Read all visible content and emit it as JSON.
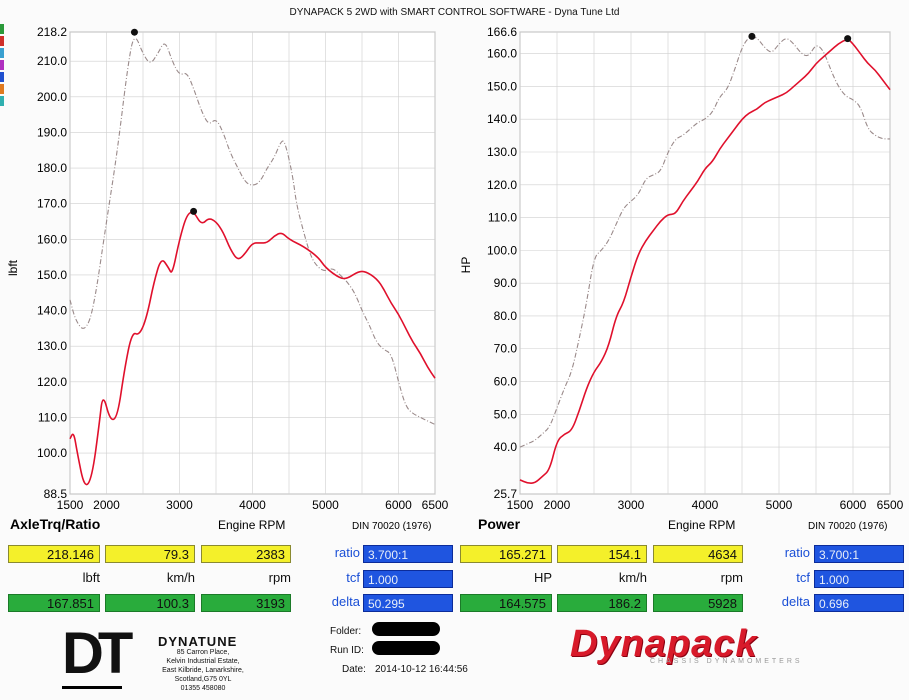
{
  "header": {
    "title": "DYNAPACK 5 2WD with SMART CONTROL SOFTWARE - Dyna Tune Ltd"
  },
  "colors": {
    "primary_curve": "#e0102c",
    "secondary_curve": "#9a8a8a",
    "yellow": "#f4f02a",
    "green": "#29ac3c",
    "blue": "#1f55e0"
  },
  "chart_data": [
    {
      "type": "line",
      "title": "AxleTrq/Ratio",
      "xlabel": "Engine RPM",
      "ylabel": "lbft",
      "note": "DIN 70020 (1976)",
      "xlim": [
        1500,
        6500
      ],
      "ylim": [
        88.5,
        218.2
      ],
      "x_ticks": [
        1500,
        2000,
        3000,
        4000,
        5000,
        6000,
        6500
      ],
      "y_ticks": [
        "88.5",
        "100.0",
        "110.0",
        "120.0",
        "130.0",
        "140.0",
        "150.0",
        "160.0",
        "170.0",
        "180.0",
        "190.0",
        "200.0",
        "210.0",
        "218.2"
      ],
      "grid": true,
      "series": [
        {
          "style": "dashed",
          "color": "#9a8a8a",
          "marker_x": 2383,
          "marker_y": 218.146,
          "points": [
            [
              1500,
              143
            ],
            [
              1580,
              137
            ],
            [
              1700,
              134
            ],
            [
              1820,
              140
            ],
            [
              2000,
              165
            ],
            [
              2150,
              185
            ],
            [
              2300,
              210
            ],
            [
              2383,
              218.1
            ],
            [
              2500,
              212
            ],
            [
              2600,
              209
            ],
            [
              2700,
              212
            ],
            [
              2800,
              216
            ],
            [
              2900,
              210
            ],
            [
              3000,
              206
            ],
            [
              3100,
              207
            ],
            [
              3200,
              202
            ],
            [
              3300,
              196
            ],
            [
              3400,
              192
            ],
            [
              3500,
              194
            ],
            [
              3600,
              190
            ],
            [
              3700,
              184
            ],
            [
              3800,
              180
            ],
            [
              3900,
              176
            ],
            [
              4000,
              175
            ],
            [
              4100,
              176
            ],
            [
              4200,
              180
            ],
            [
              4300,
              183
            ],
            [
              4400,
              188
            ],
            [
              4450,
              187
            ],
            [
              4550,
              178
            ],
            [
              4600,
              170
            ],
            [
              4700,
              162
            ],
            [
              4800,
              155
            ],
            [
              4900,
              152
            ],
            [
              5000,
              151
            ],
            [
              5100,
              152
            ],
            [
              5200,
              150
            ],
            [
              5300,
              148
            ],
            [
              5400,
              145
            ],
            [
              5500,
              140
            ],
            [
              5600,
              136
            ],
            [
              5700,
              131
            ],
            [
              5800,
              129
            ],
            [
              5900,
              128
            ],
            [
              6000,
              120
            ],
            [
              6100,
              113
            ],
            [
              6200,
              111
            ],
            [
              6300,
              110
            ],
            [
              6400,
              109
            ],
            [
              6500,
              108
            ]
          ]
        },
        {
          "style": "solid",
          "color": "#e0102c",
          "marker_x": 3193,
          "marker_y": 167.851,
          "points": [
            [
              1500,
              104
            ],
            [
              1550,
              106
            ],
            [
              1600,
              100
            ],
            [
              1700,
              90
            ],
            [
              1800,
              93
            ],
            [
              1900,
              108
            ],
            [
              1950,
              117
            ],
            [
              2050,
              109
            ],
            [
              2150,
              110
            ],
            [
              2250,
              124
            ],
            [
              2350,
              134
            ],
            [
              2450,
              133
            ],
            [
              2550,
              138
            ],
            [
              2650,
              148
            ],
            [
              2750,
              155
            ],
            [
              2850,
              152
            ],
            [
              2900,
              150
            ],
            [
              3000,
              160
            ],
            [
              3100,
              167
            ],
            [
              3193,
              167.9
            ],
            [
              3300,
              164
            ],
            [
              3400,
              166
            ],
            [
              3500,
              165
            ],
            [
              3600,
              162
            ],
            [
              3700,
              157
            ],
            [
              3800,
              154
            ],
            [
              3900,
              156
            ],
            [
              4000,
              159
            ],
            [
              4100,
              159
            ],
            [
              4200,
              159
            ],
            [
              4300,
              161
            ],
            [
              4400,
              162
            ],
            [
              4500,
              160
            ],
            [
              4700,
              158
            ],
            [
              4900,
              155
            ],
            [
              5000,
              152
            ],
            [
              5200,
              149
            ],
            [
              5300,
              149
            ],
            [
              5450,
              151
            ],
            [
              5550,
              151
            ],
            [
              5700,
              149
            ],
            [
              5800,
              146
            ],
            [
              5900,
              142
            ],
            [
              6000,
              139
            ],
            [
              6100,
              135
            ],
            [
              6200,
              131
            ],
            [
              6300,
              128
            ],
            [
              6400,
              124
            ],
            [
              6500,
              121
            ]
          ]
        }
      ]
    },
    {
      "type": "line",
      "title": "Power",
      "xlabel": "Engine RPM",
      "ylabel": "HP",
      "note": "DIN 70020 (1976)",
      "xlim": [
        1500,
        6500
      ],
      "ylim": [
        25.7,
        166.6
      ],
      "x_ticks": [
        1500,
        2000,
        3000,
        4000,
        5000,
        6000,
        6500
      ],
      "y_ticks": [
        "25.7",
        "40.0",
        "50.0",
        "60.0",
        "70.0",
        "80.0",
        "90.0",
        "100.0",
        "110.0",
        "120.0",
        "130.0",
        "140.0",
        "150.0",
        "160.0",
        "166.6"
      ],
      "grid": true,
      "series": [
        {
          "style": "dashed",
          "color": "#9a8a8a",
          "marker_x": 4634,
          "marker_y": 165.271,
          "points": [
            [
              1500,
              40
            ],
            [
              1600,
              41
            ],
            [
              1700,
              42
            ],
            [
              1800,
              44
            ],
            [
              1900,
              46
            ],
            [
              2000,
              52
            ],
            [
              2100,
              58
            ],
            [
              2200,
              63
            ],
            [
              2300,
              73
            ],
            [
              2400,
              84
            ],
            [
              2500,
              98
            ],
            [
              2600,
              100
            ],
            [
              2700,
              103
            ],
            [
              2800,
              108
            ],
            [
              2900,
              113
            ],
            [
              3000,
              115
            ],
            [
              3100,
              117
            ],
            [
              3200,
              122
            ],
            [
              3300,
              123
            ],
            [
              3400,
              124
            ],
            [
              3500,
              130
            ],
            [
              3600,
              134
            ],
            [
              3700,
              135
            ],
            [
              3800,
              137
            ],
            [
              3900,
              139
            ],
            [
              4000,
              140
            ],
            [
              4100,
              142
            ],
            [
              4200,
              147
            ],
            [
              4300,
              149
            ],
            [
              4400,
              155
            ],
            [
              4500,
              162
            ],
            [
              4600,
              165.3
            ],
            [
              4700,
              165
            ],
            [
              4800,
              162
            ],
            [
              4900,
              160
            ],
            [
              5000,
              163
            ],
            [
              5100,
              165
            ],
            [
              5200,
              163
            ],
            [
              5300,
              160
            ],
            [
              5400,
              159
            ],
            [
              5500,
              163
            ],
            [
              5600,
              161
            ],
            [
              5700,
              155
            ],
            [
              5800,
              150
            ],
            [
              5900,
              147
            ],
            [
              6000,
              146
            ],
            [
              6100,
              144
            ],
            [
              6200,
              137
            ],
            [
              6300,
              135
            ],
            [
              6400,
              134
            ],
            [
              6500,
              134
            ]
          ]
        },
        {
          "style": "solid",
          "color": "#e0102c",
          "marker_x": 5928,
          "marker_y": 164.575,
          "points": [
            [
              1500,
              30
            ],
            [
              1600,
              29
            ],
            [
              1700,
              29
            ],
            [
              1800,
              31
            ],
            [
              1900,
              33
            ],
            [
              2000,
              42
            ],
            [
              2100,
              44
            ],
            [
              2200,
              45
            ],
            [
              2300,
              51
            ],
            [
              2400,
              58
            ],
            [
              2500,
              63
            ],
            [
              2600,
              66
            ],
            [
              2700,
              71
            ],
            [
              2800,
              80
            ],
            [
              2900,
              84
            ],
            [
              3000,
              92
            ],
            [
              3100,
              99
            ],
            [
              3200,
              103
            ],
            [
              3300,
              106
            ],
            [
              3400,
              109
            ],
            [
              3500,
              111
            ],
            [
              3600,
              111
            ],
            [
              3700,
              115
            ],
            [
              3800,
              118
            ],
            [
              3900,
              121
            ],
            [
              4000,
              125
            ],
            [
              4100,
              127
            ],
            [
              4200,
              131
            ],
            [
              4300,
              134
            ],
            [
              4400,
              137
            ],
            [
              4500,
              140
            ],
            [
              4600,
              142
            ],
            [
              4700,
              143
            ],
            [
              4800,
              145
            ],
            [
              4900,
              146
            ],
            [
              5000,
              147
            ],
            [
              5100,
              148
            ],
            [
              5200,
              150
            ],
            [
              5300,
              152
            ],
            [
              5400,
              154
            ],
            [
              5500,
              157
            ],
            [
              5600,
              159
            ],
            [
              5700,
              161
            ],
            [
              5800,
              163
            ],
            [
              5928,
              164.6
            ],
            [
              6000,
              163
            ],
            [
              6100,
              160
            ],
            [
              6200,
              157
            ],
            [
              6300,
              155
            ],
            [
              6400,
              152
            ],
            [
              6500,
              149
            ]
          ]
        }
      ]
    }
  ],
  "left_panel": {
    "row1": {
      "value": "218.146",
      "speed": "79.3",
      "rpm": "2383"
    },
    "units": {
      "value": "lbft",
      "speed": "km/h",
      "rpm": "rpm"
    },
    "row2": {
      "value": "167.851",
      "speed": "100.3",
      "rpm": "3193"
    },
    "ratio_label": "ratio",
    "ratio_value": "3.700:1",
    "tcf_label": "tcf",
    "tcf_value": "1.000",
    "delta_label": "delta",
    "delta_value": "50.295"
  },
  "right_panel": {
    "row1": {
      "value": "165.271",
      "speed": "154.1",
      "rpm": "4634"
    },
    "units": {
      "value": "HP",
      "speed": "km/h",
      "rpm": "rpm"
    },
    "row2": {
      "value": "164.575",
      "speed": "186.2",
      "rpm": "5928"
    },
    "ratio_label": "ratio",
    "ratio_value": "3.700:1",
    "tcf_label": "tcf",
    "tcf_value": "1.000",
    "delta_label": "delta",
    "delta_value": "0.696"
  },
  "footer": {
    "folder_label": "Folder:",
    "runid_label": "Run ID:",
    "date_label": "Date:",
    "date_value": "2014-10-12 16:44:56",
    "company_logo": "DT",
    "company_name": "DYNATUNE",
    "address": [
      "85 Carron Place,",
      "Kelvin Industrial Estate,",
      "East Kilbride, Lanarkshire,",
      "Scotland,G75 0YL",
      "01355 458080"
    ],
    "brand": "Dynapack",
    "brand_tagline": "CHASSIS DYNAMOMETERS"
  }
}
